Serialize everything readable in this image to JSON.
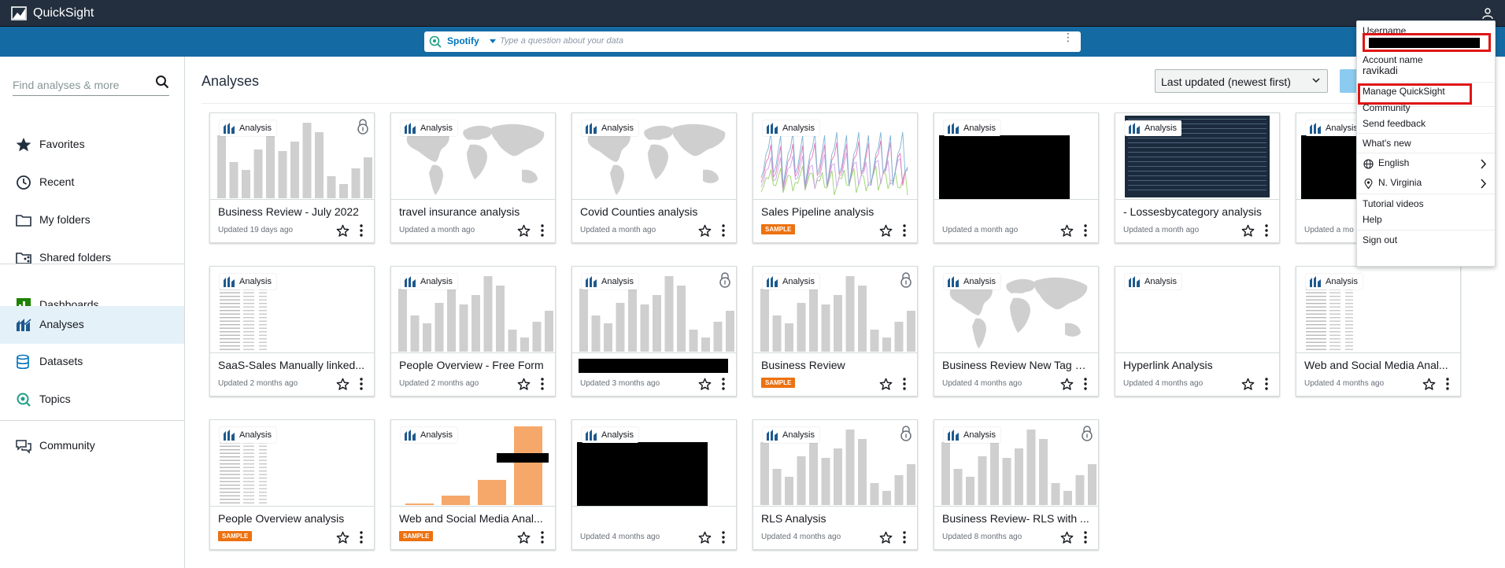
{
  "app": {
    "title": "QuickSight"
  },
  "qbar": {
    "topic": "Spotify",
    "placeholder": "Type a question about your data"
  },
  "sidebar": {
    "search_placeholder": "Find analyses & more",
    "items": [
      {
        "label": "Favorites",
        "icon": "star-icon"
      },
      {
        "label": "Recent",
        "icon": "clock-icon"
      },
      {
        "label": "My folders",
        "icon": "folder-icon"
      },
      {
        "label": "Shared folders",
        "icon": "shared-folder-icon"
      },
      {
        "label": "Dashboards",
        "icon": "dashboard-icon"
      },
      {
        "label": "Analyses",
        "icon": "analysis-icon",
        "active": true
      },
      {
        "label": "Datasets",
        "icon": "dataset-icon"
      },
      {
        "label": "Topics",
        "icon": "topic-icon"
      },
      {
        "label": "Community",
        "icon": "community-icon"
      }
    ]
  },
  "main": {
    "title": "Analyses",
    "sort_value": "Last updated (newest first)",
    "badge_label": "Analysis",
    "sample_label": "SAMPLE",
    "cards": [
      {
        "title": "Business Review - July 2022",
        "updated": "Updated 19 days ago",
        "thumb": "bars",
        "lock": true
      },
      {
        "title": "travel insurance analysis",
        "updated": "Updated a month ago",
        "thumb": "map"
      },
      {
        "title": "Covid Counties analysis",
        "updated": "Updated a month ago",
        "thumb": "map"
      },
      {
        "title": "Sales Pipeline analysis",
        "updated": "",
        "thumb": "lines",
        "sample": true
      },
      {
        "title": "",
        "updated": "Updated a month ago",
        "thumb": "black"
      },
      {
        "title": "- Lossesbycategory analysis",
        "updated": "Updated a month ago",
        "thumb": "darktable"
      },
      {
        "title": "",
        "updated": "Updated a mo",
        "thumb": "black"
      },
      {
        "title": "SaaS-Sales Manually linked...",
        "updated": "Updated 2 months ago",
        "thumb": "table"
      },
      {
        "title": "People Overview - Free Form",
        "updated": "Updated 2 months ago",
        "thumb": "bars"
      },
      {
        "title": "",
        "updated": "Updated 3 months ago",
        "thumb": "bars",
        "lock": true,
        "title_redacted": true
      },
      {
        "title": "Business Review",
        "updated": "",
        "thumb": "bars",
        "lock": true,
        "sample": true
      },
      {
        "title": "Business Review New Tag a...",
        "updated": "Updated 4 months ago",
        "thumb": "map"
      },
      {
        "title": "Hyperlink Analysis",
        "updated": "Updated 4 months ago",
        "thumb": "blank"
      },
      {
        "title": "Web and Social Media Anal...",
        "updated": "Updated 4 months ago",
        "thumb": "table"
      },
      {
        "title": "People Overview analysis",
        "updated": "",
        "thumb": "table",
        "sample": true
      },
      {
        "title": "Web and Social Media Anal...",
        "updated": "",
        "thumb": "orangebars",
        "sample": true
      },
      {
        "title": "",
        "updated": "Updated 4 months ago",
        "thumb": "black"
      },
      {
        "title": "RLS Analysis",
        "updated": "Updated 4 months ago",
        "thumb": "bars",
        "lock": true
      },
      {
        "title": "Business Review- RLS with ...",
        "updated": "Updated 8 months ago",
        "thumb": "bars",
        "lock": true
      }
    ]
  },
  "menu": {
    "username_label": "Username",
    "account_label": "Account name",
    "account_value": "ravikadi",
    "manage": "Manage QuickSight",
    "community": "Community",
    "feedback": "Send feedback",
    "whats_new": "What's new",
    "language": "English",
    "region": "N. Virginia",
    "tutorials": "Tutorial videos",
    "help": "Help",
    "signout": "Sign out"
  },
  "colors": {
    "topbar": "#232f3e",
    "band": "#146aa3",
    "accent": "#ec7211",
    "active_nav": "#e5f1f8",
    "highlight": "#e01515"
  }
}
